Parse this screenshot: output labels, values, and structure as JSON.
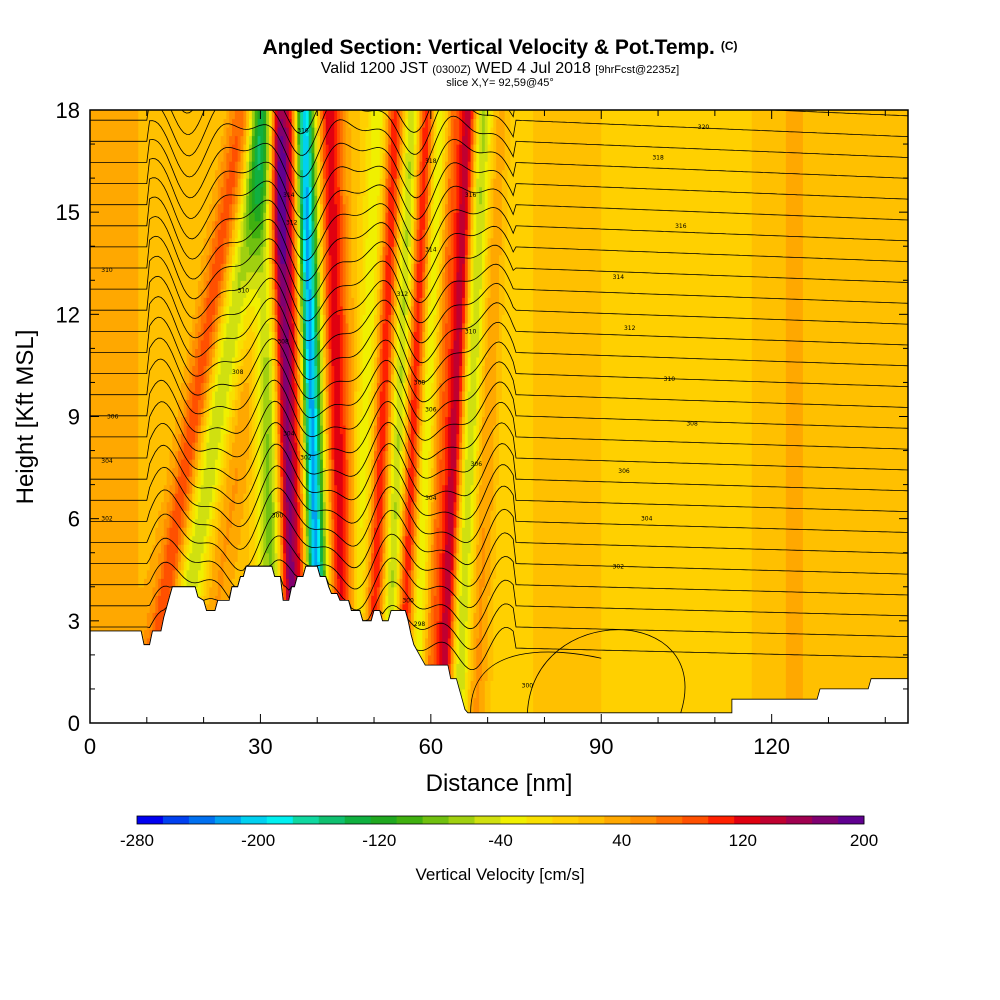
{
  "header": {
    "title": "Angled Section: Vertical Velocity & Pot.Temp.",
    "title_mark": "(C)",
    "subtitle_valid": "Valid 1200 JST",
    "subtitle_utc": "(0300Z)",
    "subtitle_date": "WED 4 Jul 2018",
    "subtitle_fcst": "[9hrFcst@2235z]",
    "slice": "slice X,Y= 92,59@45°"
  },
  "chart_data": {
    "type": "heatmap",
    "xlabel": "Distance [nm]",
    "ylabel": "Height [Kft MSL]",
    "xlim": [
      0,
      144
    ],
    "ylim": [
      0,
      18
    ],
    "x_ticks": [
      0,
      30,
      60,
      90,
      120
    ],
    "y_ticks": [
      0,
      3,
      6,
      9,
      12,
      15,
      18
    ],
    "field": "Vertical Velocity",
    "overlay": "Potential temperature contours (black lines)",
    "vertical_velocity_bands": [
      {
        "x": 4,
        "w": 7,
        "v": 20
      },
      {
        "x": 15,
        "w": 2.5,
        "v": 110
      },
      {
        "x": 18,
        "w": 3.5,
        "v": -90
      },
      {
        "x": 23,
        "w": 3,
        "v": 40
      },
      {
        "x": 28,
        "w": 2.5,
        "v": 0
      },
      {
        "x": 32,
        "w": 2.5,
        "v": -100
      },
      {
        "x": 35,
        "w": 1.8,
        "v": 170
      },
      {
        "x": 37.5,
        "w": 1.6,
        "v": 60
      },
      {
        "x": 39.5,
        "w": 1.6,
        "v": -240
      },
      {
        "x": 41.5,
        "w": 1.4,
        "v": -60
      },
      {
        "x": 44,
        "w": 2.5,
        "v": 110
      },
      {
        "x": 47.5,
        "w": 2,
        "v": -50
      },
      {
        "x": 50.5,
        "w": 1.5,
        "v": 100
      },
      {
        "x": 53.5,
        "w": 1.5,
        "v": -80
      },
      {
        "x": 56,
        "w": 1.5,
        "v": 100
      },
      {
        "x": 58.5,
        "w": 1.5,
        "v": -70
      },
      {
        "x": 61,
        "w": 2,
        "v": 60
      },
      {
        "x": 63.5,
        "w": 1.5,
        "v": 120
      },
      {
        "x": 66,
        "w": 1.8,
        "v": -80
      },
      {
        "x": 69,
        "w": 2,
        "v": 40
      },
      {
        "x": 74,
        "w": 4,
        "v": -20
      },
      {
        "x": 83,
        "w": 5,
        "v": 10
      },
      {
        "x": 96,
        "w": 5,
        "v": -20
      },
      {
        "x": 110,
        "w": 6,
        "v": -15
      },
      {
        "x": 124,
        "w": 5,
        "v": 15
      },
      {
        "x": 138,
        "w": 4,
        "v": 5
      }
    ],
    "terrain_kft": [
      [
        0,
        2.7
      ],
      [
        9,
        2.7
      ],
      [
        9.5,
        2.3
      ],
      [
        10.5,
        2.3
      ],
      [
        11,
        2.7
      ],
      [
        12.5,
        2.7
      ],
      [
        13,
        3.1
      ],
      [
        13.5,
        3.4
      ],
      [
        14,
        3.7
      ],
      [
        14.5,
        4.0
      ],
      [
        18.5,
        4.0
      ],
      [
        19,
        3.7
      ],
      [
        20,
        3.6
      ],
      [
        20.5,
        3.3
      ],
      [
        22,
        3.3
      ],
      [
        22.5,
        3.6
      ],
      [
        24.5,
        3.6
      ],
      [
        25,
        4.0
      ],
      [
        26,
        4.0
      ],
      [
        26.5,
        4.3
      ],
      [
        27,
        4.3
      ],
      [
        27.5,
        4.6
      ],
      [
        32,
        4.6
      ],
      [
        32.5,
        4.3
      ],
      [
        33.5,
        4.3
      ],
      [
        34,
        3.6
      ],
      [
        35,
        3.6
      ],
      [
        35.5,
        4.0
      ],
      [
        36,
        4.0
      ],
      [
        36.5,
        4.3
      ],
      [
        37.5,
        4.3
      ],
      [
        38,
        4.6
      ],
      [
        40,
        4.6
      ],
      [
        40.5,
        4.3
      ],
      [
        41.5,
        4.3
      ],
      [
        42,
        4.0
      ],
      [
        42.5,
        3.8
      ],
      [
        43.5,
        3.8
      ],
      [
        44,
        3.6
      ],
      [
        45.5,
        3.6
      ],
      [
        46,
        3.3
      ],
      [
        47.5,
        3.3
      ],
      [
        48,
        3.0
      ],
      [
        49.5,
        3.0
      ],
      [
        50,
        3.3
      ],
      [
        51,
        3.3
      ],
      [
        51.5,
        3.0
      ],
      [
        52.5,
        3.0
      ],
      [
        53,
        3.3
      ],
      [
        55.5,
        3.3
      ],
      [
        56,
        3.0
      ],
      [
        56.5,
        2.6
      ],
      [
        57,
        2.3
      ],
      [
        58,
        2.0
      ],
      [
        59,
        1.7
      ],
      [
        63,
        1.7
      ],
      [
        63.5,
        1.3
      ],
      [
        64.5,
        1.3
      ],
      [
        65,
        1.0
      ],
      [
        65.5,
        0.7
      ],
      [
        66,
        0.4
      ],
      [
        66.5,
        0.3
      ],
      [
        113,
        0.3
      ],
      [
        113,
        0.7
      ],
      [
        120,
        0.7
      ],
      [
        128,
        0.7
      ],
      [
        128.5,
        1.0
      ],
      [
        137,
        1.0
      ],
      [
        137.5,
        1.3
      ],
      [
        144,
        1.3
      ]
    ],
    "contour_labels": [
      {
        "x": 37.5,
        "y": 17.4,
        "t": "316"
      },
      {
        "x": 35,
        "y": 15.5,
        "t": "314"
      },
      {
        "x": 35.5,
        "y": 14.7,
        "t": "312"
      },
      {
        "x": 60,
        "y": 16.5,
        "t": "318"
      },
      {
        "x": 67,
        "y": 15.5,
        "t": "316"
      },
      {
        "x": 60,
        "y": 13.9,
        "t": "314"
      },
      {
        "x": 3,
        "y": 13.3,
        "t": "310"
      },
      {
        "x": 27,
        "y": 12.7,
        "t": "310"
      },
      {
        "x": 55,
        "y": 12.6,
        "t": "312"
      },
      {
        "x": 34,
        "y": 11.2,
        "t": "308"
      },
      {
        "x": 26,
        "y": 10.3,
        "t": "308"
      },
      {
        "x": 67,
        "y": 11.5,
        "t": "310"
      },
      {
        "x": 58,
        "y": 10.0,
        "t": "308"
      },
      {
        "x": 60,
        "y": 9.2,
        "t": "306"
      },
      {
        "x": 4,
        "y": 9.0,
        "t": "306"
      },
      {
        "x": 35,
        "y": 8.5,
        "t": "304"
      },
      {
        "x": 38,
        "y": 7.8,
        "t": "302"
      },
      {
        "x": 3,
        "y": 7.7,
        "t": "304"
      },
      {
        "x": 68,
        "y": 7.6,
        "t": "306"
      },
      {
        "x": 3,
        "y": 6.0,
        "t": "302"
      },
      {
        "x": 33,
        "y": 6.1,
        "t": "300"
      },
      {
        "x": 60,
        "y": 6.6,
        "t": "304"
      },
      {
        "x": 56,
        "y": 3.6,
        "t": "300"
      },
      {
        "x": 58,
        "y": 2.9,
        "t": "298"
      },
      {
        "x": 100,
        "y": 16.6,
        "t": "318"
      },
      {
        "x": 108,
        "y": 17.5,
        "t": "320"
      },
      {
        "x": 104,
        "y": 14.6,
        "t": "316"
      },
      {
        "x": 93,
        "y": 13.1,
        "t": "314"
      },
      {
        "x": 95,
        "y": 11.6,
        "t": "312"
      },
      {
        "x": 102,
        "y": 10.1,
        "t": "310"
      },
      {
        "x": 106,
        "y": 8.8,
        "t": "308"
      },
      {
        "x": 94,
        "y": 7.4,
        "t": "306"
      },
      {
        "x": 98,
        "y": 6.0,
        "t": "304"
      },
      {
        "x": 93,
        "y": 4.6,
        "t": "302"
      },
      {
        "x": 77,
        "y": 1.1,
        "t": "300"
      }
    ],
    "colorbar": {
      "label": "Vertical Velocity [cm/s]",
      "min": -280,
      "max": 200,
      "tick_labels": [
        "-280",
        "-200",
        "-120",
        "-40",
        "40",
        "120",
        "200"
      ],
      "colors": [
        "#0000f0",
        "#0040f0",
        "#0070f0",
        "#00a0f0",
        "#00d0f0",
        "#00f0f0",
        "#10d8a0",
        "#10c070",
        "#10b040",
        "#20a820",
        "#40b010",
        "#70c010",
        "#a0d010",
        "#d0e010",
        "#f0f000",
        "#f8e000",
        "#ffd000",
        "#ffc000",
        "#ffa800",
        "#ff9000",
        "#ff7000",
        "#ff5000",
        "#ff2000",
        "#e00010",
        "#c00030",
        "#a00050",
        "#800070",
        "#600090"
      ]
    }
  }
}
